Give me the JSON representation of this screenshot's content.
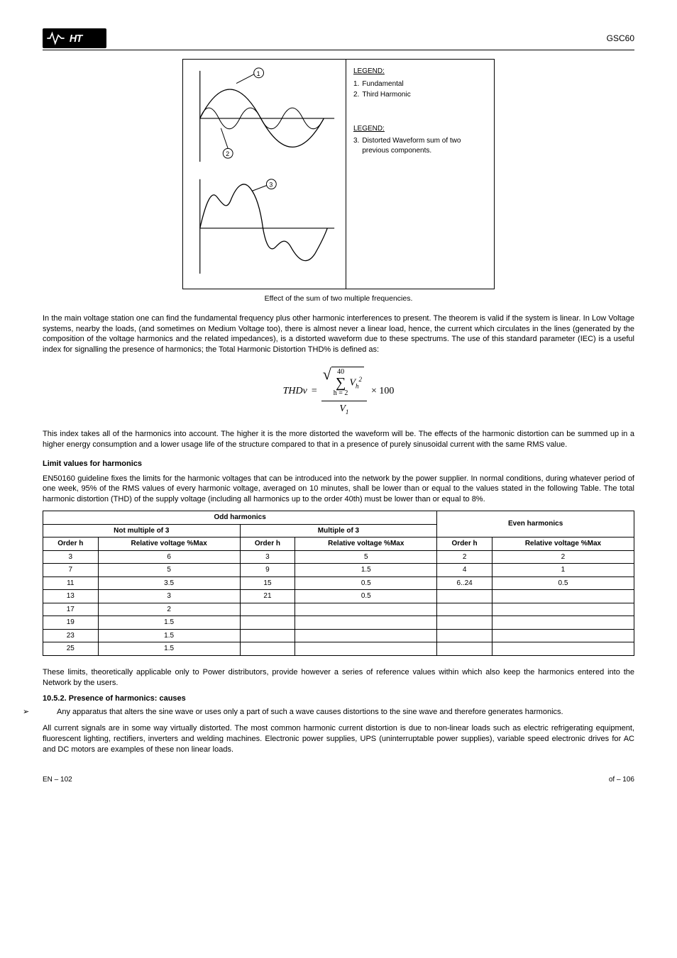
{
  "header": {
    "model": "GSC60"
  },
  "figure": {
    "legend1": {
      "title": "LEGEND:",
      "items": [
        {
          "n": "1.",
          "txt": "Fundamental"
        },
        {
          "n": "2.",
          "txt": "Third Harmonic"
        }
      ]
    },
    "legend2": {
      "title": "LEGEND:",
      "items": [
        {
          "n": "3.",
          "txt": "Distorted Waveform sum of two previous components."
        }
      ]
    },
    "caption": "Effect of the sum of two multiple frequencies."
  },
  "para1": "In the main voltage station one can find the fundamental frequency plus other harmonic interferences to present. The theorem is valid if the system is linear. In Low Voltage systems, nearby the loads, (and sometimes on Medium Voltage too), there is almost never a linear load, hence, the current which circulates in the lines (generated by the composition of the voltage harmonics and the related impedances), is a distorted waveform due to these spectrums. The use of this standard parameter (IEC) is a useful index for signalling the presence of harmonics; the Total Harmonic Distortion THD% is defined as:",
  "formula": {
    "lhs": "THDv",
    "rhs_num_upper": "40",
    "rhs_num_lower": "h = 2",
    "rhs_inside": "V",
    "rhs_sub": "h",
    "rhs_exp": "2",
    "rhs_den": "V",
    "rhs_den_sub": "1",
    "after": "× 100"
  },
  "para2": "This index takes all of the harmonics into account. The higher it is the more distorted the waveform will be. The effects of the harmonic distortion can be summed up in a higher energy consumption and a lower usage life of the structure compared to that in a presence of purely sinusoidal current with the same RMS value.",
  "limits": {
    "title": "Limit values for harmonics",
    "intro": "EN50160 guideline fixes the limits for the harmonic voltages that can be introduced into the network by the power supplier. In normal conditions, during whatever period of one week, 95% of the RMS values of every harmonic voltage, averaged on 10 minutes, shall be lower than or equal to the values stated in the following Table. The total harmonic distortion (THD) of the supply voltage (including all harmonics up to the order 40th) must be lower than or equal to 8%."
  },
  "table": {
    "headers": {
      "odd": "Odd harmonics",
      "even": "Even harmonics",
      "not_mult": "Not multiple of 3",
      "mult": "Multiple of 3",
      "order": "Order h",
      "rel": "Relative voltage %Max"
    },
    "rows": [
      {
        "c1": "3",
        "c2": "6",
        "c3": "3",
        "c4": "5",
        "c5": "2",
        "c6": "2"
      },
      {
        "c1": "7",
        "c2": "5",
        "c3": "9",
        "c4": "1.5",
        "c5": "4",
        "c6": "1"
      },
      {
        "c1": "11",
        "c2": "3.5",
        "c3": "15",
        "c4": "0.5",
        "c5": "6..24",
        "c6": "0.5"
      },
      {
        "c1": "13",
        "c2": "3",
        "c3": "21",
        "c4": "0.5",
        "c5": "",
        "c6": ""
      },
      {
        "c1": "17",
        "c2": "2",
        "c3": "",
        "c4": "",
        "c5": "",
        "c6": ""
      },
      {
        "c1": "19",
        "c2": "1.5",
        "c3": "",
        "c4": "",
        "c5": "",
        "c6": ""
      },
      {
        "c1": "23",
        "c2": "1.5",
        "c3": "",
        "c4": "",
        "c5": "",
        "c6": ""
      },
      {
        "c1": "25",
        "c2": "1.5",
        "c3": "",
        "c4": "",
        "c5": "",
        "c6": ""
      }
    ]
  },
  "notes": {
    "title": "These limits, theoretically applicable only to Power distributors, provide however a series of reference values within which also keep the harmonics entered into the Network by the users.",
    "section_title": "10.5.2. Presence of harmonics: causes",
    "bullets": [
      "Any apparatus that alters the sine wave or uses only a part of such a wave causes distortions to the sine wave and therefore generates harmonics."
    ],
    "para": "All current signals are in some way virtually distorted. The most common harmonic current distortion is due to non-linear loads such as electric refrigerating equipment, fluorescent lighting, rectifiers, inverters and welding machines. Electronic power supplies, UPS (uninterruptable power supplies), variable speed electronic drives for AC and DC motors are examples of these non linear loads."
  },
  "footer": {
    "left": "EN – 102",
    "right": "of – 106"
  }
}
